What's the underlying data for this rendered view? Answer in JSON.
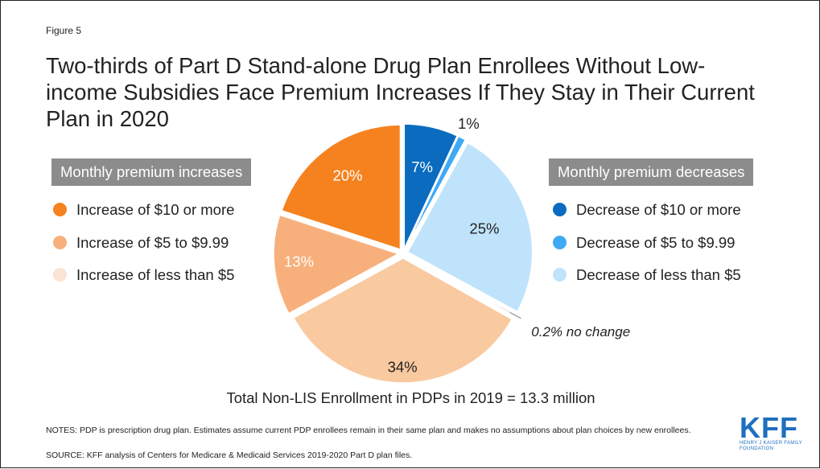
{
  "figure_label": "Figure 5",
  "title": "Two-thirds of Part D Stand-alone Drug Plan Enrollees Without Low-income Subsidies Face Premium Increases If They Stay in Their Current Plan in 2020",
  "legend_increases": {
    "header": "Monthly premium increases",
    "items": [
      {
        "label": "Increase of $10 or more",
        "color": "#f5821f"
      },
      {
        "label": "Increase of $5 to $9.99",
        "color": "#f7b07c"
      },
      {
        "label": "Increase of less than $5",
        "color": "#fbe3d3"
      }
    ]
  },
  "legend_decreases": {
    "header": "Monthly premium decreases",
    "items": [
      {
        "label": "Decrease of $10 or more",
        "color": "#0b6bbf"
      },
      {
        "label": "Decrease of $5 to $9.99",
        "color": "#3fa9f5"
      },
      {
        "label": "Decrease of less than $5",
        "color": "#bfe3fa"
      }
    ]
  },
  "chart_data": {
    "type": "pie",
    "slices": [
      {
        "name": "Decrease of $10 or more",
        "value": 7,
        "label": "7%",
        "color": "#0b6bbf"
      },
      {
        "name": "Decrease of $5 to $9.99",
        "value": 1,
        "label": "1%",
        "color": "#3fa9f5"
      },
      {
        "name": "Decrease of less than $5",
        "value": 25,
        "label": "25%",
        "color": "#bfe3fa"
      },
      {
        "name": "No change",
        "value": 0.2,
        "label": "0.2% no change",
        "color": "#7f7f7f"
      },
      {
        "name": "Increase of less than $5",
        "value": 34,
        "label": "34%",
        "color": "#f9c9a0"
      },
      {
        "name": "Increase of $5 to $9.99",
        "value": 13,
        "label": "13%",
        "color": "#f7b07c"
      },
      {
        "name": "Increase of $10 or more",
        "value": 20,
        "label": "20%",
        "color": "#f5821f"
      }
    ]
  },
  "total_text": "Total Non-LIS Enrollment in PDPs in 2019 = 13.3 million",
  "notes": "NOTES: PDP is prescription drug plan. Estimates assume current PDP enrollees remain in their same plan and makes no assumptions about plan choices by new enrollees.",
  "source": "SOURCE: KFF analysis of Centers for Medicare & Medicaid Services 2019-2020 Part D plan files.",
  "logo": {
    "mark": "KFF",
    "sub": "HENRY J KAISER FAMILY FOUNDATION"
  }
}
